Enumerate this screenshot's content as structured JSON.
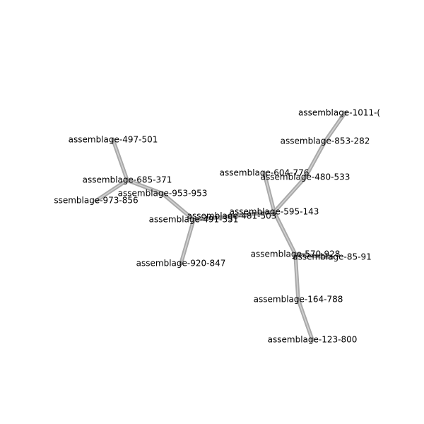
{
  "graph": {
    "nodes": [
      {
        "id": "n1011",
        "label": "assemblage-1011-("
      },
      {
        "id": "n853",
        "label": "assemblage-853-282"
      },
      {
        "id": "n497",
        "label": "assemblage-497-501"
      },
      {
        "id": "n604",
        "label": "assemblage-604-776"
      },
      {
        "id": "n480",
        "label": "assemblage-480-533"
      },
      {
        "id": "n685",
        "label": "assemblage-685-371"
      },
      {
        "id": "n953",
        "label": "assemblage-953-953"
      },
      {
        "id": "n973",
        "label": "ssemblage-973-856"
      },
      {
        "id": "n595",
        "label": "assemblage-595-143"
      },
      {
        "id": "n481",
        "label": "assemblage-481-503"
      },
      {
        "id": "n491",
        "label": "assemblage-491-351"
      },
      {
        "id": "n570",
        "label": "assemblage-570-928"
      },
      {
        "id": "n85",
        "label": "assemblage-85-91"
      },
      {
        "id": "n920",
        "label": "assemblage-920-847"
      },
      {
        "id": "n164",
        "label": "assemblage-164-788"
      },
      {
        "id": "n123",
        "label": "assemblage-123-800"
      }
    ],
    "edges": [
      {
        "source": "n1011",
        "target": "n853"
      },
      {
        "source": "n853",
        "target": "n480"
      },
      {
        "source": "n480",
        "target": "n595"
      },
      {
        "source": "n604",
        "target": "n595"
      },
      {
        "source": "n595",
        "target": "n481"
      },
      {
        "source": "n595",
        "target": "n570"
      },
      {
        "source": "n570",
        "target": "n85"
      },
      {
        "source": "n570",
        "target": "n164"
      },
      {
        "source": "n164",
        "target": "n123"
      },
      {
        "source": "n481",
        "target": "n491"
      },
      {
        "source": "n491",
        "target": "n953"
      },
      {
        "source": "n491",
        "target": "n920"
      },
      {
        "source": "n953",
        "target": "n685"
      },
      {
        "source": "n685",
        "target": "n497"
      },
      {
        "source": "n685",
        "target": "n973"
      }
    ]
  }
}
